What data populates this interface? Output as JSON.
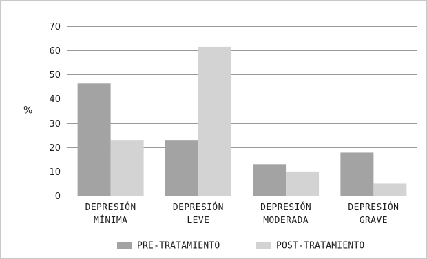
{
  "chart_data": {
    "type": "bar",
    "title": "",
    "xlabel": "",
    "ylabel": "%",
    "ylim": [
      0,
      70
    ],
    "yticks": [
      0,
      10,
      20,
      30,
      40,
      50,
      60,
      70
    ],
    "grid": true,
    "legend_position": "bottom",
    "categories": [
      [
        "DEPRESIÓN",
        "MÍNIMA"
      ],
      [
        "DEPRESIÓN",
        "LEVE"
      ],
      [
        "DEPRESIÓN",
        "MODERADA"
      ],
      [
        "DEPRESIÓN",
        "GRAVE"
      ]
    ],
    "series": [
      {
        "name": "PRE-TRATAMIENTO",
        "color": "#a3a3a3",
        "values": [
          46.3,
          23.0,
          13.0,
          17.8
        ]
      },
      {
        "name": "POST-TRATAMIENTO",
        "color": "#d3d3d3",
        "values": [
          23.0,
          61.5,
          10.0,
          5.0
        ]
      }
    ]
  }
}
